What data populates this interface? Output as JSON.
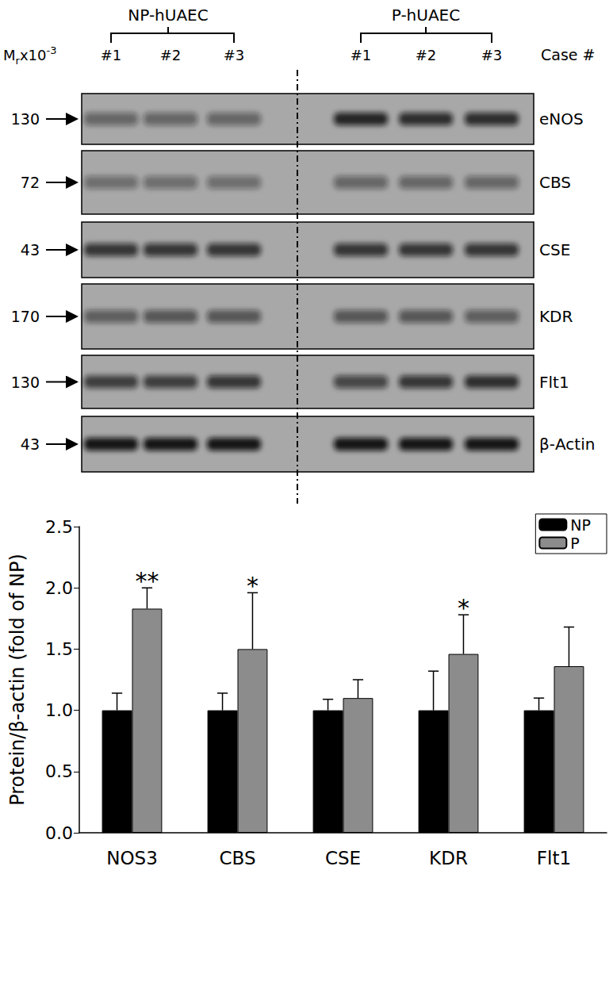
{
  "blot": {
    "mw_header": {
      "text": "M",
      "sub": "r",
      "after": "x10",
      "sup": "-3"
    },
    "lane_header": "Case #",
    "groups": [
      {
        "label": "NP-hUAEC",
        "lanes": [
          "#1",
          "#2",
          "#3"
        ]
      },
      {
        "label": "P-hUAEC",
        "lanes": [
          "#1",
          "#2",
          "#3"
        ]
      }
    ],
    "panels": [
      {
        "protein": "eNOS",
        "mw": 130,
        "band_intensity": [
          0.45,
          0.45,
          0.45,
          0.85,
          0.8,
          0.8
        ]
      },
      {
        "protein": "CBS",
        "mw": 72,
        "band_intensity": [
          0.4,
          0.4,
          0.4,
          0.45,
          0.45,
          0.45
        ]
      },
      {
        "protein": "CSE",
        "mw": 43,
        "band_intensity": [
          0.75,
          0.75,
          0.75,
          0.75,
          0.75,
          0.75
        ]
      },
      {
        "protein": "KDR",
        "mw": 170,
        "band_intensity": [
          0.5,
          0.55,
          0.55,
          0.55,
          0.55,
          0.5
        ]
      },
      {
        "protein": "Flt1",
        "mw": 130,
        "band_intensity": [
          0.7,
          0.7,
          0.75,
          0.65,
          0.75,
          0.8
        ]
      },
      {
        "protein": "β-Actin",
        "mw": 43,
        "band_intensity": [
          0.95,
          0.95,
          0.95,
          0.95,
          0.95,
          0.95
        ]
      }
    ]
  },
  "chart_data": {
    "type": "bar",
    "y_label": "Protein/β-actin (fold of NP)",
    "categories": [
      "NOS3",
      "CBS",
      "CSE",
      "KDR",
      "Flt1"
    ],
    "series": [
      {
        "name": "NP",
        "color": "#000000",
        "values": [
          1.0,
          1.0,
          1.0,
          1.0,
          1.0
        ],
        "errors": [
          0.14,
          0.14,
          0.09,
          0.32,
          0.1
        ]
      },
      {
        "name": "P",
        "color": "#8c8c8c",
        "values": [
          1.83,
          1.5,
          1.1,
          1.46,
          1.36
        ],
        "errors": [
          0.17,
          0.46,
          0.15,
          0.32,
          0.32
        ],
        "annotations": [
          "**",
          "*",
          null,
          "*",
          null
        ]
      }
    ],
    "ylim": [
      0,
      2.5
    ],
    "yticks": [
      {
        "value": 0,
        "label": "0.0"
      },
      0.5,
      {
        "value": 1,
        "label": "1.0"
      },
      1.5,
      {
        "value": 2,
        "label": "2.0"
      },
      2.5
    ],
    "grid": false,
    "legend": "top-right"
  }
}
